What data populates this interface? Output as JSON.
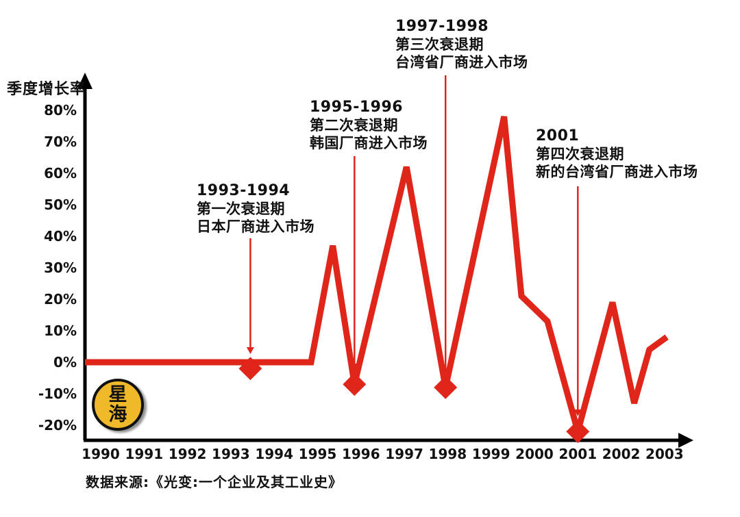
{
  "colors": {
    "line_red": "#e0251a",
    "axis_black": "#000000",
    "logo_yellow": "#f0b929",
    "text_black": "#111111"
  },
  "logo": {
    "text_top": "星",
    "text_bottom": "海"
  },
  "source_text": "数据来源:《光变:一个企业及其工业史》",
  "chart_data": {
    "type": "line",
    "title": "",
    "ylabel": "季度增长率",
    "xlabel": "",
    "grid": false,
    "legend": "none",
    "x_range": [
      1990,
      2003
    ],
    "ylim": [
      -25,
      85
    ],
    "y_ticks": [
      "80%",
      "70%",
      "60%",
      "50%",
      "40%",
      "30%",
      "20%",
      "10%",
      "0%",
      "-10%",
      "-20%"
    ],
    "y_tick_values": [
      80,
      70,
      60,
      50,
      40,
      30,
      20,
      10,
      0,
      -10,
      -20
    ],
    "x_ticks": [
      "1990",
      "1991",
      "1992",
      "1993",
      "1994",
      "1995",
      "1996",
      "1997",
      "1998",
      "1999",
      "2000",
      "2001",
      "2002",
      "2003"
    ],
    "x_tick_values": [
      1990,
      1991,
      1992,
      1993,
      1994,
      1995,
      1996,
      1997,
      1998,
      1999,
      2000,
      2001,
      2002,
      2003
    ],
    "series": [
      {
        "name": "季度增长率",
        "x": [
          1990.0,
          1994.85,
          1995.35,
          1995.85,
          1997.05,
          1997.95,
          1999.3,
          1999.7,
          2000.3,
          2001.0,
          2001.8,
          2002.3,
          2002.65,
          2003.05
        ],
        "values": [
          0,
          0,
          37,
          -7,
          62,
          -8,
          78,
          21,
          13,
          -22,
          19,
          -13,
          4,
          8
        ]
      }
    ],
    "markers": [
      {
        "year": 1993.45,
        "value": -2
      },
      {
        "year": 1995.85,
        "value": -7
      },
      {
        "year": 1997.95,
        "value": -8
      },
      {
        "year": 2001.0,
        "value": -22
      }
    ],
    "annotations": [
      {
        "title": "1993-1994",
        "line1": "第一次衰退期",
        "line2": "日本厂商进入市场"
      },
      {
        "title": "1995-1996",
        "line1": "第二次衰退期",
        "line2": "韩国厂商进入市场"
      },
      {
        "title": "1997-1998",
        "line1": "第三次衰退期",
        "line2": "台湾省厂商进入市场"
      },
      {
        "title": "2001",
        "line1": "第四次衰退期",
        "line2": "新的台湾省厂商进入市场"
      }
    ]
  }
}
